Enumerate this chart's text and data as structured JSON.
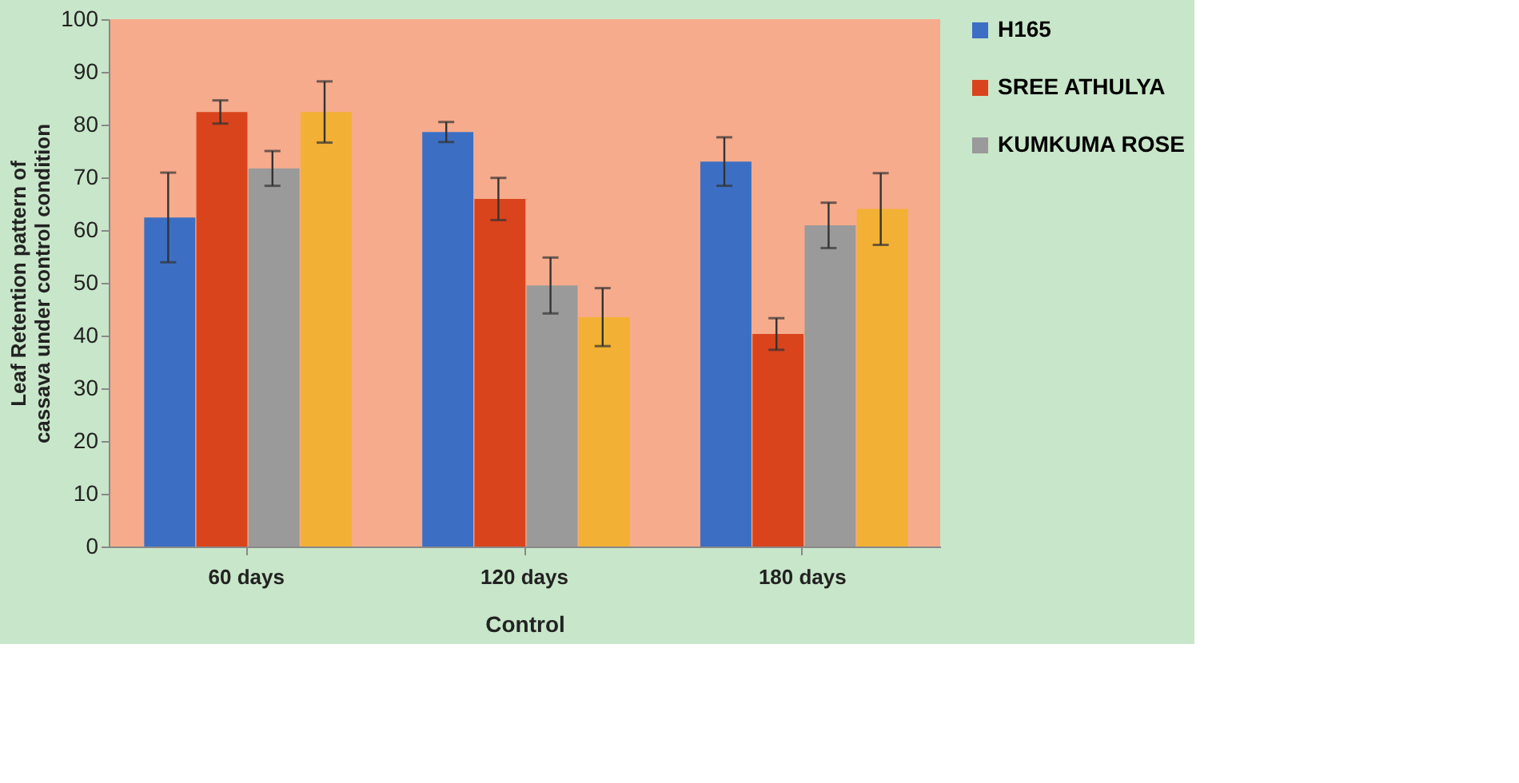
{
  "chart_data": {
    "type": "bar",
    "ylabel": "Leaf Retention pattern of cassava under control condition",
    "xlabel": "Control",
    "categories": [
      "60 days",
      "120 days",
      "180 days"
    ],
    "series": [
      {
        "name": "H165",
        "color": "#3c6fc4",
        "values": [
          62.4,
          78.6,
          73.0
        ],
        "errors": [
          8.5,
          1.9,
          4.6
        ]
      },
      {
        "name": "SREE ATHULYA",
        "color": "#d9441c",
        "values": [
          82.4,
          65.9,
          40.3
        ],
        "errors": [
          2.2,
          4.0,
          3.0
        ]
      },
      {
        "name": "KUMKUMA ROSE",
        "color": "#9a9a9a",
        "values": [
          71.7,
          49.5,
          60.9
        ],
        "errors": [
          3.3,
          5.3,
          4.3
        ]
      },
      {
        "color": "#f2b134",
        "values": [
          82.4,
          43.5,
          64.0
        ],
        "errors": [
          5.8,
          5.5,
          6.8
        ]
      }
    ],
    "ylim": [
      0,
      100
    ],
    "yticks": [
      0,
      10,
      20,
      30,
      40,
      50,
      60,
      70,
      80,
      90,
      100
    ],
    "grid": false,
    "legend": "right"
  }
}
